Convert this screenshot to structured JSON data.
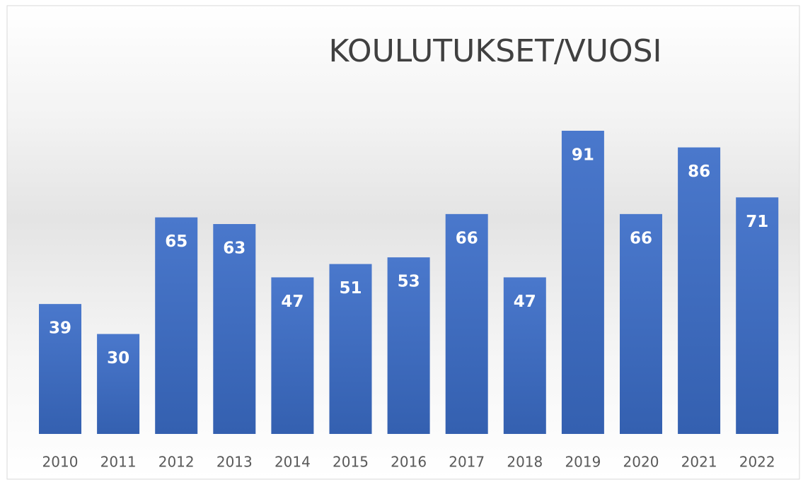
{
  "chart_data": {
    "type": "bar",
    "title": "KOULUTUKSET/VUOSI",
    "categories": [
      "2010",
      "2011",
      "2012",
      "2013",
      "2014",
      "2015",
      "2016",
      "2017",
      "2018",
      "2019",
      "2020",
      "2021",
      "2022"
    ],
    "values": [
      39,
      30,
      65,
      63,
      47,
      51,
      53,
      66,
      47,
      91,
      66,
      86,
      71
    ],
    "color": "#4472c4"
  }
}
